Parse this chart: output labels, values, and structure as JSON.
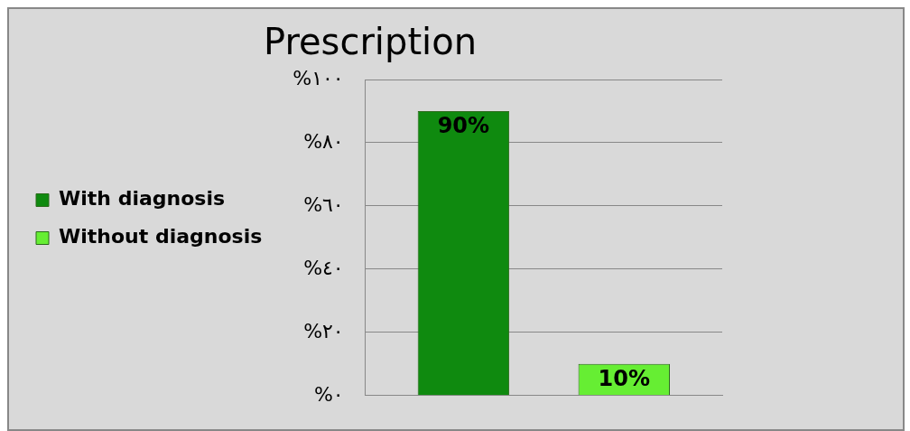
{
  "chart_data": {
    "type": "bar",
    "title": "Prescription",
    "categories": [
      null
    ],
    "series": [
      {
        "name": "With diagnosis",
        "color": "#0f8a0f",
        "values": [
          90
        ],
        "value_labels": [
          "90%"
        ]
      },
      {
        "name": "Without diagnosis",
        "color": "#66ee33",
        "values": [
          10
        ],
        "value_labels": [
          "10%"
        ]
      }
    ],
    "ylim": [
      0,
      100
    ],
    "yticks": [
      {
        "value": 0,
        "label": "%٠"
      },
      {
        "value": 20,
        "label": "%٢٠"
      },
      {
        "value": 40,
        "label": "%٤٠"
      },
      {
        "value": 60,
        "label": "%٦٠"
      },
      {
        "value": 80,
        "label": "%٨٠"
      },
      {
        "value": 100,
        "label": "%١٠٠"
      }
    ],
    "grid": "y",
    "legend": "left",
    "tick_labels": "y"
  }
}
